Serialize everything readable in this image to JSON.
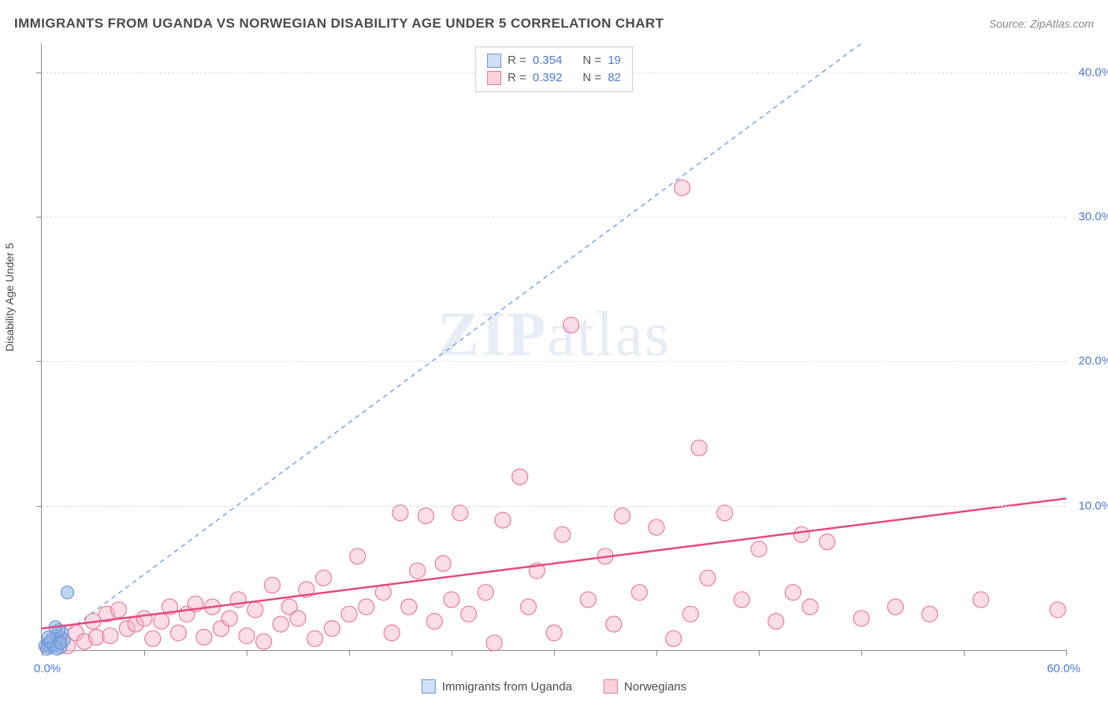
{
  "header": {
    "title": "IMMIGRANTS FROM UGANDA VS NORWEGIAN DISABILITY AGE UNDER 5 CORRELATION CHART",
    "source": "Source: ZipAtlas.com"
  },
  "ylabel": "Disability Age Under 5",
  "xlim": [
    0,
    60
  ],
  "ylim": [
    0,
    42
  ],
  "xticks": [
    0,
    6,
    12,
    18,
    24,
    30,
    36,
    42,
    48,
    54,
    60
  ],
  "yticks": [
    10,
    20,
    30,
    40
  ],
  "ytick_labels": [
    "10.0%",
    "20.0%",
    "30.0%",
    "40.0%"
  ],
  "origin_label": "0.0%",
  "xmax_label": "60.0%",
  "watermark": {
    "bold": "ZIP",
    "light": "atlas"
  },
  "legend_top": [
    {
      "color_fill": "#cfe0f7",
      "color_border": "#6b93d6",
      "r": "0.354",
      "n": "19"
    },
    {
      "color_fill": "#f9d2dc",
      "color_border": "#e77a9a",
      "r": "0.392",
      "n": "82"
    }
  ],
  "legend_bottom": [
    {
      "label": "Immigrants from Uganda",
      "fill": "#cfe0f7",
      "border": "#6b93d6"
    },
    {
      "label": "Norwegians",
      "fill": "#f9d2dc",
      "border": "#e77a9a"
    }
  ],
  "series": {
    "uganda": {
      "color_fill": "rgba(144,178,228,0.55)",
      "color_stroke": "#6b93d6",
      "marker_r": 8,
      "points": [
        [
          0.2,
          0.3
        ],
        [
          0.4,
          0.5
        ],
        [
          0.5,
          0.2
        ],
        [
          0.6,
          0.8
        ],
        [
          0.8,
          0.4
        ],
        [
          0.9,
          1.0
        ],
        [
          1.0,
          0.6
        ],
        [
          1.1,
          0.2
        ],
        [
          1.2,
          1.2
        ],
        [
          0.3,
          0.1
        ],
        [
          0.7,
          0.3
        ],
        [
          1.3,
          0.7
        ],
        [
          0.5,
          0.6
        ],
        [
          0.9,
          0.1
        ],
        [
          1.0,
          1.4
        ],
        [
          0.4,
          0.9
        ],
        [
          1.1,
          0.5
        ],
        [
          0.8,
          1.6
        ],
        [
          1.5,
          4.0
        ]
      ]
    },
    "norwegians": {
      "color_fill": "rgba(245,180,200,0.45)",
      "color_stroke": "#e77a9a",
      "marker_r": 10,
      "points": [
        [
          0.5,
          0.4
        ],
        [
          1.0,
          0.8
        ],
        [
          1.5,
          0.3
        ],
        [
          2.0,
          1.2
        ],
        [
          2.5,
          0.6
        ],
        [
          3.0,
          2.0
        ],
        [
          3.2,
          0.9
        ],
        [
          3.8,
          2.5
        ],
        [
          4.0,
          1.0
        ],
        [
          4.5,
          2.8
        ],
        [
          5.0,
          1.5
        ],
        [
          5.5,
          1.8
        ],
        [
          6.0,
          2.2
        ],
        [
          6.5,
          0.8
        ],
        [
          7.0,
          2.0
        ],
        [
          7.5,
          3.0
        ],
        [
          8.0,
          1.2
        ],
        [
          8.5,
          2.5
        ],
        [
          9.0,
          3.2
        ],
        [
          9.5,
          0.9
        ],
        [
          10.0,
          3.0
        ],
        [
          10.5,
          1.5
        ],
        [
          11.0,
          2.2
        ],
        [
          11.5,
          3.5
        ],
        [
          12.0,
          1.0
        ],
        [
          12.5,
          2.8
        ],
        [
          13.0,
          0.6
        ],
        [
          13.5,
          4.5
        ],
        [
          14.0,
          1.8
        ],
        [
          14.5,
          3.0
        ],
        [
          15.0,
          2.2
        ],
        [
          15.5,
          4.2
        ],
        [
          16.0,
          0.8
        ],
        [
          16.5,
          5.0
        ],
        [
          17.0,
          1.5
        ],
        [
          18.0,
          2.5
        ],
        [
          18.5,
          6.5
        ],
        [
          19.0,
          3.0
        ],
        [
          20.0,
          4.0
        ],
        [
          20.5,
          1.2
        ],
        [
          21.0,
          9.5
        ],
        [
          21.5,
          3.0
        ],
        [
          22.0,
          5.5
        ],
        [
          22.5,
          9.3
        ],
        [
          23.0,
          2.0
        ],
        [
          23.5,
          6.0
        ],
        [
          24.0,
          3.5
        ],
        [
          24.5,
          9.5
        ],
        [
          25.0,
          2.5
        ],
        [
          26.0,
          4.0
        ],
        [
          26.5,
          0.5
        ],
        [
          27.0,
          9.0
        ],
        [
          28.0,
          12.0
        ],
        [
          28.5,
          3.0
        ],
        [
          29.0,
          5.5
        ],
        [
          30.0,
          1.2
        ],
        [
          30.5,
          8.0
        ],
        [
          31.0,
          22.5
        ],
        [
          32.0,
          3.5
        ],
        [
          33.0,
          6.5
        ],
        [
          33.5,
          1.8
        ],
        [
          34.0,
          9.3
        ],
        [
          35.0,
          4.0
        ],
        [
          36.0,
          8.5
        ],
        [
          37.0,
          0.8
        ],
        [
          37.5,
          32.0
        ],
        [
          38.0,
          2.5
        ],
        [
          38.5,
          14.0
        ],
        [
          39.0,
          5.0
        ],
        [
          40.0,
          9.5
        ],
        [
          41.0,
          3.5
        ],
        [
          42.0,
          7.0
        ],
        [
          43.0,
          2.0
        ],
        [
          44.0,
          4.0
        ],
        [
          44.5,
          8.0
        ],
        [
          45.0,
          3.0
        ],
        [
          46.0,
          7.5
        ],
        [
          48.0,
          2.2
        ],
        [
          50.0,
          3.0
        ],
        [
          52.0,
          2.5
        ],
        [
          55.0,
          3.5
        ],
        [
          59.5,
          2.8
        ]
      ]
    }
  },
  "reference_line": {
    "color": "#7aa3e0",
    "dash": "6,5",
    "width": 1.5,
    "from": [
      0,
      0
    ],
    "to": [
      48,
      42
    ]
  },
  "trend_line": {
    "color": "#e8487a",
    "width": 2.5,
    "from": [
      0,
      1.5
    ],
    "to": [
      60,
      10.5
    ]
  },
  "background_color": "#ffffff",
  "grid_color": "#dcdcdc"
}
